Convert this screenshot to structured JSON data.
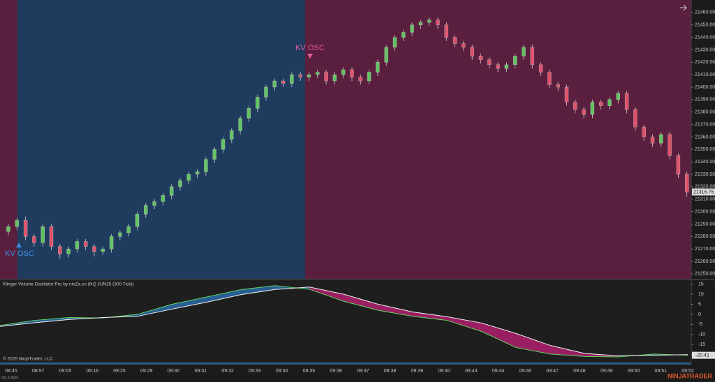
{
  "chart_data": [
    {
      "type": "candlestick",
      "open": [
        21284,
        21288,
        21293,
        21280,
        21275,
        21288,
        21272,
        21266,
        21270,
        21276,
        21272,
        21268,
        21270,
        21280,
        21283,
        21288,
        21298,
        21305,
        21308,
        21313,
        21320,
        21325,
        21330,
        21332,
        21342,
        21350,
        21358,
        21365,
        21375,
        21383,
        21392,
        21400,
        21405,
        21403,
        21410,
        21408,
        21410,
        21412,
        21405,
        21410,
        21414,
        21408,
        21405,
        21412,
        21420,
        21432,
        21440,
        21444,
        21450,
        21452,
        21454,
        21450,
        21440,
        21435,
        21432,
        21425,
        21422,
        21418,
        21415,
        21418,
        21425,
        21432,
        21418,
        21412,
        21402,
        21400,
        21388,
        21382,
        21378,
        21388,
        21385,
        21390,
        21395,
        21382,
        21368,
        21360,
        21355,
        21362,
        21345,
        21330
      ],
      "high": [
        21290,
        21295,
        21296,
        21282,
        21290,
        21290,
        21274,
        21272,
        21278,
        21278,
        21274,
        21272,
        21282,
        21285,
        21290,
        21300,
        21307,
        21310,
        21315,
        21322,
        21327,
        21332,
        21334,
        21344,
        21352,
        21360,
        21367,
        21377,
        21385,
        21394,
        21402,
        21407,
        21407,
        21412,
        21412,
        21412,
        21414,
        21414,
        21412,
        21416,
        21416,
        21410,
        21414,
        21422,
        21434,
        21442,
        21446,
        21452,
        21454,
        21456,
        21456,
        21452,
        21442,
        21437,
        21434,
        21427,
        21424,
        21420,
        21420,
        21427,
        21434,
        21434,
        21420,
        21414,
        21404,
        21402,
        21390,
        21384,
        21390,
        21390,
        21392,
        21397,
        21397,
        21384,
        21370,
        21362,
        21364,
        21364,
        21347,
        21332
      ],
      "low": [
        21281,
        21285,
        21277,
        21272,
        21272,
        21269,
        21262,
        21263,
        21267,
        21269,
        21264,
        21265,
        21267,
        21277,
        21280,
        21285,
        21295,
        21302,
        21305,
        21310,
        21317,
        21322,
        21327,
        21329,
        21339,
        21347,
        21355,
        21362,
        21372,
        21380,
        21389,
        21397,
        21400,
        21400,
        21405,
        21405,
        21407,
        21402,
        21402,
        21407,
        21405,
        21402,
        21402,
        21409,
        21417,
        21429,
        21437,
        21441,
        21447,
        21449,
        21447,
        21437,
        21432,
        21429,
        21422,
        21419,
        21415,
        21412,
        21412,
        21415,
        21422,
        21415,
        21409,
        21399,
        21397,
        21385,
        21379,
        21375,
        21375,
        21382,
        21382,
        21387,
        21379,
        21365,
        21357,
        21352,
        21352,
        21342,
        21327,
        21312
      ],
      "close": [
        21288,
        21293,
        21280,
        21275,
        21288,
        21272,
        21266,
        21270,
        21276,
        21272,
        21268,
        21270,
        21280,
        21283,
        21288,
        21298,
        21305,
        21308,
        21313,
        21320,
        21325,
        21330,
        21332,
        21342,
        21350,
        21358,
        21365,
        21375,
        21383,
        21392,
        21400,
        21405,
        21403,
        21410,
        21408,
        21410,
        21412,
        21405,
        21410,
        21414,
        21408,
        21405,
        21412,
        21420,
        21432,
        21440,
        21444,
        21450,
        21452,
        21454,
        21450,
        21440,
        21435,
        21432,
        21425,
        21422,
        21418,
        21415,
        21418,
        21425,
        21432,
        21418,
        21412,
        21402,
        21400,
        21388,
        21382,
        21378,
        21388,
        21385,
        21390,
        21395,
        21382,
        21368,
        21360,
        21355,
        21362,
        21345,
        21330,
        21315.75
      ],
      "up_color": "#62c462",
      "down_color": "#e0506a",
      "ylim": [
        21246,
        21470
      ],
      "yticks": [
        {
          "value": 21250,
          "label": "21250.00"
        },
        {
          "value": 21260,
          "label": "21260.00"
        },
        {
          "value": 21270,
          "label": "21270.00"
        },
        {
          "value": 21280,
          "label": "21280.00"
        },
        {
          "value": 21290,
          "label": "21290.00"
        },
        {
          "value": 21300,
          "label": "21300.00"
        },
        {
          "value": 21310,
          "label": "21310.00"
        },
        {
          "value": 21320,
          "label": "21320.00"
        },
        {
          "value": 21330,
          "label": "21330.00"
        },
        {
          "value": 21340,
          "label": "21340.00"
        },
        {
          "value": 21350,
          "label": "21350.00"
        },
        {
          "value": 21360,
          "label": "21360.00"
        },
        {
          "value": 21370,
          "label": "21370.00"
        },
        {
          "value": 21380,
          "label": "21380.00"
        },
        {
          "value": 21390,
          "label": "21390.00"
        },
        {
          "value": 21400,
          "label": "21400.00"
        },
        {
          "value": 21410,
          "label": "21410.00"
        },
        {
          "value": 21420,
          "label": "21420.00"
        },
        {
          "value": 21430,
          "label": "21430.00"
        },
        {
          "value": 21440,
          "label": "21440.00"
        },
        {
          "value": 21450,
          "label": "21450.00"
        },
        {
          "value": 21460,
          "label": "21460.00"
        }
      ],
      "last_price": 21315.75,
      "annotations": [
        "KV OSC",
        "KV OSC"
      ]
    },
    {
      "type": "line",
      "title": "Klinger Volume Oscillator Pro by ninZa.co (NQ JUN25 (300 Tick))",
      "note": "© 2025 NinjaTrader, LLC",
      "series": [
        {
          "color": "#5fd35f",
          "values": [
            -5.6,
            -3,
            -1.6,
            -1.8,
            0,
            5,
            8.6,
            12.3,
            14.3,
            12.5,
            6.5,
            2,
            -1,
            -3,
            -8.5,
            -16.5,
            -19.8,
            -21,
            -21.2,
            -19.8,
            -20.41
          ]
        },
        {
          "color": "#f0f0f0",
          "values": [
            -6,
            -4.2,
            -2.6,
            -1.6,
            -1,
            2.6,
            6,
            9.8,
            12.4,
            13.6,
            10,
            5,
            1.2,
            -1.2,
            -4.3,
            -9.5,
            -15.5,
            -19.5,
            -20.7,
            -20.4,
            -20.1
          ]
        }
      ],
      "fill_up_color": "#2a6aa8",
      "fill_down_color": "#b0206e",
      "ylim": [
        -24,
        17
      ],
      "yticks": [
        15,
        10,
        5,
        0,
        -5,
        -10,
        -15,
        -20
      ]
    }
  ],
  "time_axis": [
    "08:45",
    "08:57",
    "09:05",
    "09:16",
    "09:25",
    "09:29",
    "09:30",
    "09:31",
    "09:32",
    "09:33",
    "09:34",
    "09:35",
    "09:36",
    "09:37",
    "09:38",
    "09:39",
    "09:40",
    "09:43",
    "09:44",
    "09:46",
    "09:47",
    "09:48",
    "09:49",
    "09:50",
    "09:51",
    "09:52"
  ],
  "footer": {
    "instrument": "NQ JUN25",
    "brand": "NINJATRADER"
  }
}
